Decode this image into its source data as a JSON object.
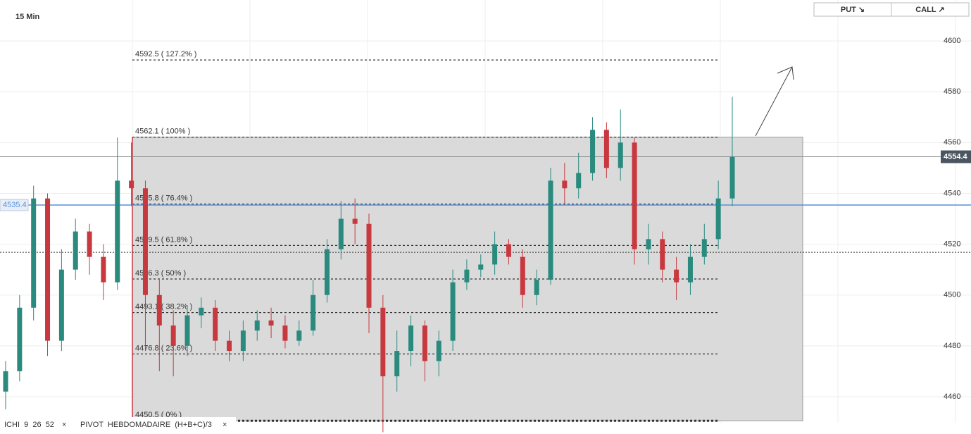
{
  "chart_data": {
    "type": "candlestick",
    "timeframe": "15 Min",
    "ylim": [
      4445.3,
      4616.1
    ],
    "yticks": [
      4460,
      4480,
      4500,
      4520,
      4540,
      4560,
      4580,
      4600
    ],
    "up_color": "#2a8a7e",
    "down_color": "#c8383f",
    "open": [
      4462,
      4470,
      4495,
      4538,
      4482,
      4510,
      4525,
      4515,
      4505,
      4545,
      4542,
      4500,
      4488,
      4480,
      4492,
      4495,
      4482,
      4478,
      4486,
      4490,
      4488,
      4482,
      4486,
      4500,
      4518,
      4530,
      4528,
      4495,
      4468,
      4478,
      4488,
      4474,
      4482,
      4505,
      4510,
      4512,
      4520,
      4515,
      4500,
      4506,
      4545,
      4542,
      4548,
      4565,
      4550,
      4560,
      4518,
      4522,
      4510,
      4505,
      4515,
      4522,
      4538
    ],
    "high": [
      4474,
      4500,
      4543,
      4540,
      4518,
      4530,
      4528,
      4520,
      4562,
      4560,
      4545,
      4506,
      4494,
      4496,
      4499,
      4498,
      4486,
      4490,
      4494,
      4495,
      4492,
      4490,
      4506,
      4522,
      4537,
      4538,
      4532,
      4500,
      4486,
      4492,
      4490,
      4486,
      4510,
      4514,
      4516,
      4525,
      4522,
      4518,
      4510,
      4550,
      4552,
      4556,
      4570,
      4568,
      4573,
      4562,
      4528,
      4525,
      4515,
      4520,
      4528,
      4545,
      4578
    ],
    "low": [
      4455,
      4466,
      4490,
      4476,
      4478,
      4506,
      4508,
      4498,
      4502,
      4535,
      4478,
      4470,
      4468,
      4476,
      4487,
      4478,
      4474,
      4474,
      4482,
      4483,
      4479,
      4480,
      4484,
      4497,
      4514,
      4520,
      4485,
      4446,
      4462,
      4472,
      4466,
      4468,
      4478,
      4502,
      4507,
      4508,
      4512,
      4495,
      4496,
      4504,
      4536,
      4538,
      4545,
      4546,
      4545,
      4512,
      4512,
      4505,
      4498,
      4500,
      4512,
      4518,
      4535
    ],
    "close": [
      4470,
      4495,
      4538,
      4482,
      4510,
      4525,
      4515,
      4505,
      4545,
      4542,
      4500,
      4488,
      4480,
      4492,
      4495,
      4482,
      4478,
      4486,
      4490,
      4488,
      4482,
      4486,
      4500,
      4518,
      4530,
      4528,
      4495,
      4468,
      4478,
      4488,
      4474,
      4482,
      4505,
      4510,
      4512,
      4520,
      4515,
      4500,
      4506,
      4545,
      4542,
      4548,
      4565,
      4550,
      4560,
      4518,
      4522,
      4510,
      4505,
      4515,
      4522,
      4538,
      4554.4
    ],
    "fib_levels": [
      {
        "value": 4592.5,
        "label": "4592.5 ( 127.2% )"
      },
      {
        "value": 4562.1,
        "label": "4562.1 ( 100% )"
      },
      {
        "value": 4535.8,
        "label": "4535.8 ( 76.4% )"
      },
      {
        "value": 4519.5,
        "label": "4519.5 ( 61.8% )"
      },
      {
        "value": 4506.3,
        "label": "4506.3 ( 50% )"
      },
      {
        "value": 4493.1,
        "label": "4493.1 ( 38.2% )"
      },
      {
        "value": 4476.8,
        "label": "4476.8 ( 23.6% )"
      },
      {
        "value": 4450.5,
        "label": "4450.5 ( 0% )"
      }
    ],
    "last_price": {
      "value": 4554.4,
      "label": "4554.4"
    },
    "alert_line": {
      "value": 4535.4,
      "label": "4535.4"
    },
    "pivot": 4516.8,
    "indicators": [
      "ICHI  9  26  52",
      "PIVOT  HEBDOMADAIRE  (H+B+C)/3"
    ],
    "buttons": [
      "PUT ↘",
      "CALL ↗"
    ]
  }
}
